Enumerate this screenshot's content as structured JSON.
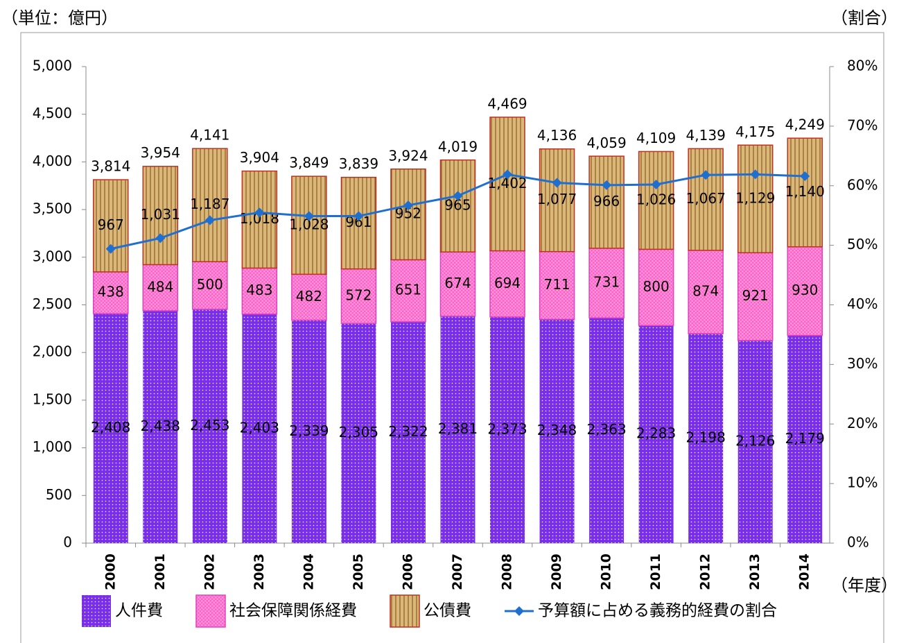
{
  "chart_data": {
    "type": "bar",
    "stacked": true,
    "unit_label": "（単位：億円）",
    "y2_unit_label": "（割合）",
    "x_unit_label": "（年度）",
    "categories": [
      "2000",
      "2001",
      "2002",
      "2003",
      "2004",
      "2005",
      "2006",
      "2007",
      "2008",
      "2009",
      "2010",
      "2011",
      "2012",
      "2013",
      "2014"
    ],
    "series": [
      {
        "name": "人件費",
        "color": "#7a2ee8",
        "values": [
          2408,
          2438,
          2453,
          2403,
          2339,
          2305,
          2322,
          2381,
          2373,
          2348,
          2363,
          2283,
          2198,
          2126,
          2179
        ],
        "value_labels": [
          "2,408",
          "2,438",
          "2,453",
          "2,403",
          "2,339",
          "2,305",
          "2,322",
          "2,381",
          "2,373",
          "2,348",
          "2,363",
          "2,283",
          "2,198",
          "2,126",
          "2,179"
        ]
      },
      {
        "name": "社会保障関係経費",
        "color": "#ff5fc8",
        "values": [
          438,
          484,
          500,
          483,
          482,
          572,
          651,
          674,
          694,
          711,
          731,
          800,
          874,
          921,
          930
        ]
      },
      {
        "name": "公債費",
        "color": "#d9b87a",
        "values": [
          967,
          1031,
          1187,
          1018,
          1028,
          961,
          952,
          965,
          1402,
          1077,
          966,
          1026,
          1067,
          1129,
          1140
        ],
        "value_labels": [
          "967",
          "1,031",
          "1,187",
          "1,018",
          "1,028",
          "961",
          "952",
          "965",
          "1,402",
          "1,077",
          "966",
          "1,026",
          "1,067",
          "1,129",
          "1,140"
        ]
      },
      {
        "name": "予算額に占める義務的経費の割合",
        "type": "line",
        "axis": "y2",
        "color": "#1f6fd0",
        "values": [
          49.4,
          51.2,
          54.2,
          55.5,
          54.9,
          54.9,
          56.7,
          58.3,
          61.9,
          60.5,
          60.1,
          60.2,
          61.8,
          61.9,
          61.6
        ]
      }
    ],
    "totals": {
      "values": [
        3814,
        3954,
        4141,
        3904,
        3849,
        3839,
        3924,
        4019,
        4469,
        4136,
        4059,
        4109,
        4139,
        4175,
        4249
      ],
      "value_labels": [
        "3,814",
        "3,954",
        "4,141",
        "3,904",
        "3,849",
        "3,839",
        "3,924",
        "4,019",
        "4,469",
        "4,136",
        "4,059",
        "4,109",
        "4,139",
        "4,175",
        "4,249"
      ]
    },
    "ylim": [
      0,
      5000
    ],
    "yticks": [
      0,
      500,
      {
        "value": 1000,
        "label": "1,000"
      },
      {
        "value": 1500,
        "label": "1,500"
      },
      {
        "value": 2000,
        "label": "2,000"
      },
      {
        "value": 2500,
        "label": "2,500"
      },
      {
        "value": 3000,
        "label": "3,000"
      },
      {
        "value": 3500,
        "label": "3,500"
      },
      {
        "value": 4000,
        "label": "4,000"
      },
      {
        "value": 4500,
        "label": "4,500"
      },
      {
        "value": 5000,
        "label": "5,000"
      }
    ],
    "y2lim": [
      0,
      80
    ],
    "y2ticks": [
      {
        "value": 0,
        "label": "0%"
      },
      {
        "value": 10,
        "label": "10%"
      },
      {
        "value": 20,
        "label": "20%"
      },
      {
        "value": 30,
        "label": "30%"
      },
      {
        "value": 40,
        "label": "40%"
      },
      {
        "value": 50,
        "label": "50%"
      },
      {
        "value": 60,
        "label": "60%"
      },
      {
        "value": 70,
        "label": "70%"
      },
      {
        "value": 80,
        "label": "80%"
      }
    ],
    "legend": "bottom"
  }
}
